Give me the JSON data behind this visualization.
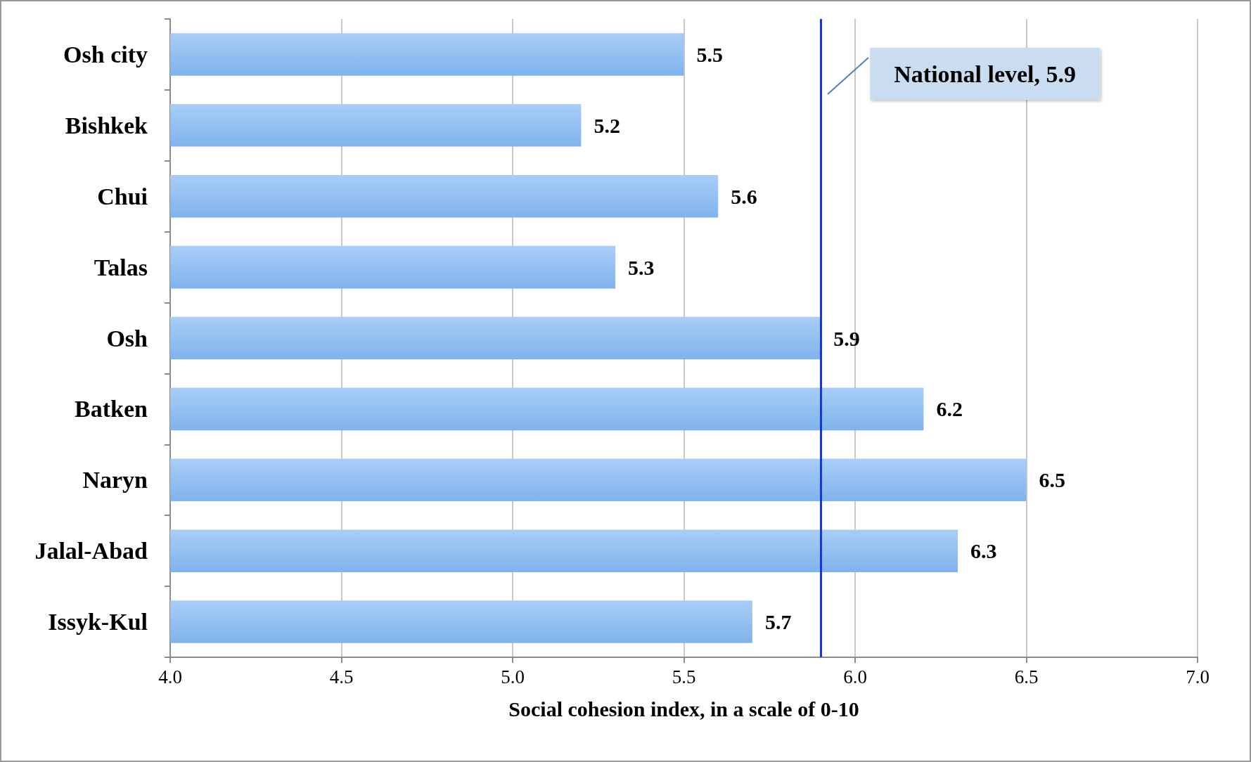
{
  "chart_data": {
    "type": "bar",
    "orientation": "horizontal",
    "xlabel": "Social cohesion index, in a scale of 0-10",
    "categories": [
      "Osh city",
      "Bishkek",
      "Chui",
      "Talas",
      "Osh",
      "Batken",
      "Naryn",
      "Jalal-Abad",
      "Issyk-Kul"
    ],
    "values": [
      5.5,
      5.2,
      5.6,
      5.3,
      5.9,
      6.2,
      6.5,
      6.3,
      5.7
    ],
    "color": "#7fb3ec",
    "data_labels": true,
    "xlim": [
      4.0,
      7.0
    ],
    "xticks": [
      {
        "value": 4,
        "label": "4.0"
      },
      {
        "value": 4.5,
        "label": "4.5"
      },
      {
        "value": 5,
        "label": "5.0"
      },
      {
        "value": 5.5,
        "label": "5.5"
      },
      {
        "value": 6,
        "label": "6.0"
      },
      {
        "value": 6.5,
        "label": "6.5"
      },
      {
        "value": 7,
        "label": "7.0"
      }
    ],
    "grid": "x",
    "ref_lines": [
      {
        "axis": "x",
        "value": 5.9,
        "label": "National level, 5.9",
        "color": "#1438e0",
        "line_style": "solid"
      }
    ]
  }
}
